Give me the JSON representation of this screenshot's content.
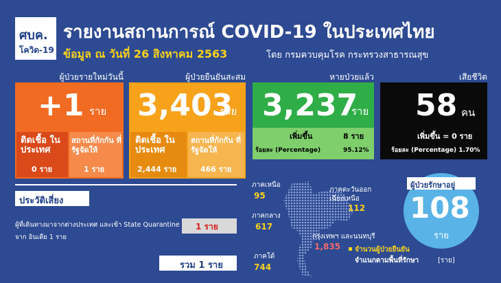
{
  "header": {
    "logo": {
      "title": "ศบค.",
      "subtitle": "โควิด-19"
    },
    "title": "รายงานสถานการณ์ COVID-19 ในประเทศไทย",
    "date": "ข้อมูล ณ วันที่ 26 สิงหาคม 2563",
    "source": "โดย กรมควบคุมโรค กระทรวงสาธารณสุข"
  },
  "cards": [
    {
      "label": "ผู้ป่วยรายใหม่วันนี้",
      "value": "+1",
      "unit": "ราย",
      "details": [
        {
          "label": "ติดเชื้อ ในประเทศ",
          "value": "0 ราย"
        },
        {
          "label": "สถานที่กักกัน ที่รัฐจัดให้",
          "value": "1 ราย"
        }
      ]
    },
    {
      "label": "ผู้ป่วยยืนยันสะสม",
      "value": "3,403",
      "unit": "ราย",
      "details": [
        {
          "label": "ติดเชื้อ ในประเทศ",
          "value": "2,444 ราย"
        },
        {
          "label": "สถานที่กักกัน ที่รัฐจัดให้",
          "value": "466 ราย"
        }
      ]
    },
    {
      "label": "หายป่วยแล้ว",
      "value": "3,237",
      "unit": "ราย",
      "details": [
        {
          "label": "เพิ่มขึ้น",
          "value": "8 ราย"
        },
        {
          "label": "ร้อยละ (Percentage)",
          "value": "95.12%"
        }
      ]
    },
    {
      "label": "เสียชีวิต",
      "value": "58",
      "unit": "คน",
      "details": [
        {
          "label": "เพิ่มขึ้น = 0 ราย"
        },
        {
          "label": "ร้อยละ (Percentage) 1.70%"
        }
      ]
    }
  ],
  "risk": {
    "title": "ประวัติเสี่ยง",
    "item": "ผู้ที่เดินทางมาจากต่างประเทศ และเข้า State Quarantine",
    "note": "จาก อินเดีย 1 ราย",
    "value": "1 ราย",
    "total": "รวม 1 ราย"
  },
  "regions": [
    {
      "name": "ภาคเหนือ",
      "value": "95"
    },
    {
      "name": "ภาคตะวันออกเฉียงเหนือ",
      "value": "112"
    },
    {
      "name": "ภาคกลาง",
      "value": "617"
    },
    {
      "name": "กรุงเทพฯ และนนทบุรี",
      "value": "1,835"
    },
    {
      "name": "ภาคใต้",
      "value": "744"
    }
  ],
  "in_treatment": {
    "label": "ผู้ป่วยรักษาอยู่",
    "value": "108",
    "unit": "ราย"
  },
  "legend": {
    "line1": "จำนวนผู้ป่วยยืนยัน",
    "line2": "จำแนกตามพื้นที่รักษา",
    "unit": "[ราย]"
  }
}
